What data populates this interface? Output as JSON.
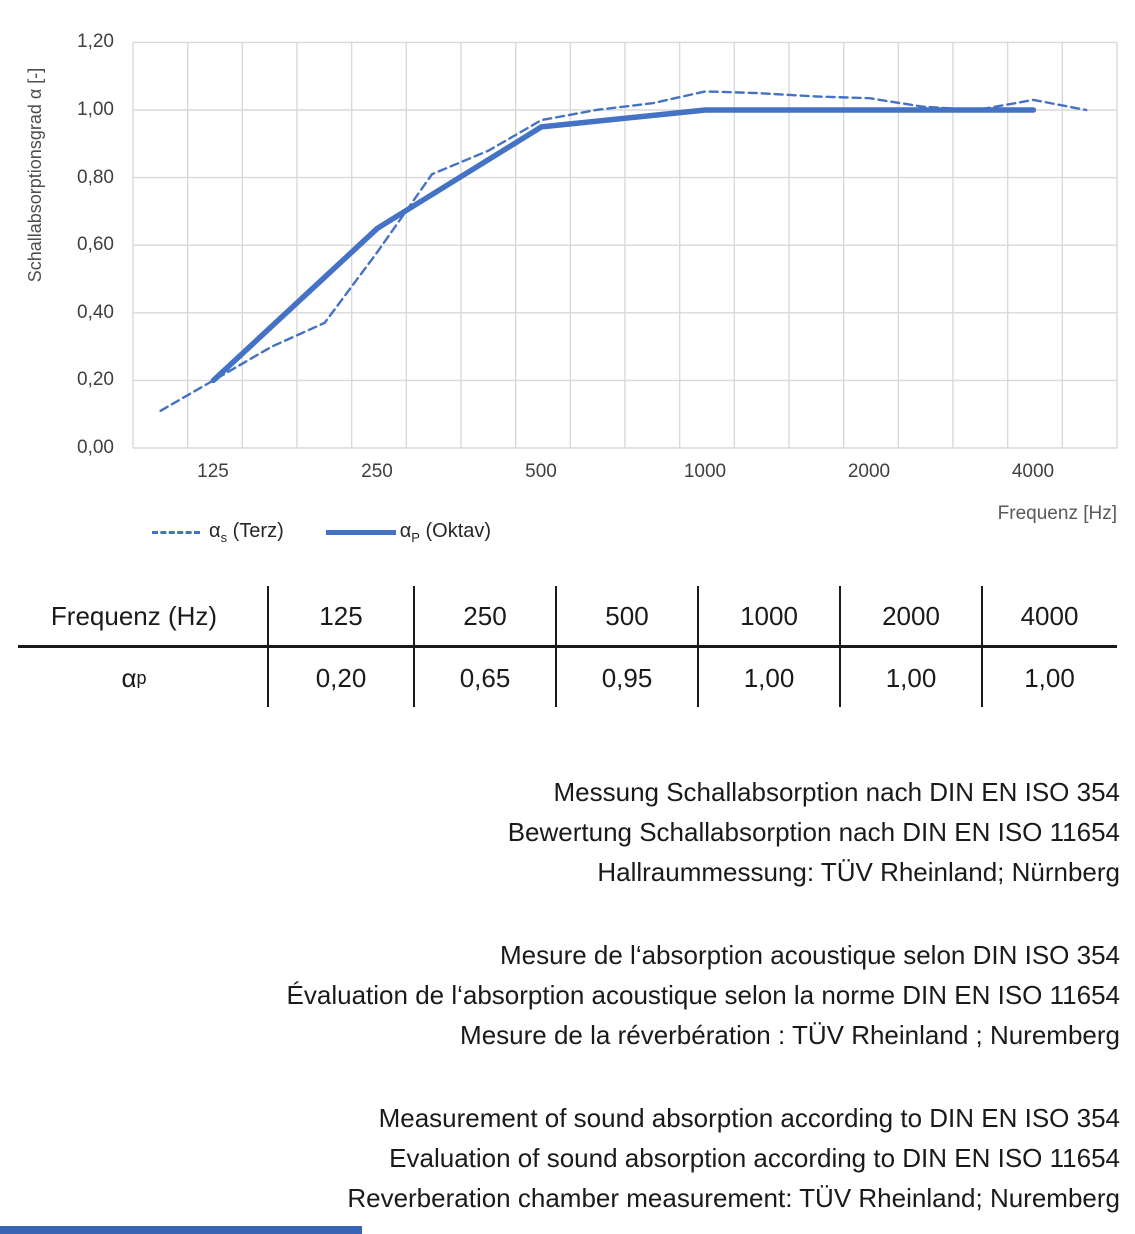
{
  "chart_data": {
    "type": "line",
    "title": "",
    "xlabel": "Frequenz [Hz]",
    "ylabel": "Schallabsorptionsgrad α [-]",
    "x_scale": "log",
    "x_tick_labels": [
      "125",
      "250",
      "500",
      "1000",
      "2000",
      "4000"
    ],
    "y_tick_labels": [
      "1,20",
      "1,00",
      "0,80",
      "0,60",
      "0,40",
      "0,20",
      "0,00"
    ],
    "ylim": [
      0.0,
      1.2
    ],
    "xlim_hz": [
      89,
      5700
    ],
    "grid": true,
    "legend_position": "bottom-left",
    "series": [
      {
        "id": "alpha-s-terz-line",
        "name": "αs (Terz)",
        "style": "dashed",
        "color": "#4472C4",
        "x": [
          100,
          125,
          160,
          200,
          250,
          315,
          400,
          500,
          630,
          800,
          1000,
          1250,
          1600,
          2000,
          2500,
          3150,
          4000,
          5000
        ],
        "values": [
          0.11,
          0.2,
          0.3,
          0.37,
          0.58,
          0.81,
          0.88,
          0.97,
          1.0,
          1.02,
          1.055,
          1.05,
          1.04,
          1.035,
          1.01,
          1.0,
          1.03,
          1.0
        ]
      },
      {
        "id": "alpha-p-oktav-line",
        "name": "αP (Oktav)",
        "style": "solid",
        "color": "#4472C4",
        "x": [
          125,
          250,
          500,
          1000,
          2000,
          4000
        ],
        "values": [
          0.2,
          0.65,
          0.95,
          1.0,
          1.0,
          1.0
        ]
      }
    ]
  },
  "legend": {
    "s1": {
      "alpha": "α",
      "sub": "s",
      "rest": " (Terz)"
    },
    "s2": {
      "alpha": "α",
      "sub": "P",
      "rest": " (Oktav)"
    }
  },
  "table": {
    "header_label": "Frequenz (Hz)",
    "row_label_alpha": "α",
    "row_label_sub": "p",
    "frequencies": [
      "125",
      "250",
      "500",
      "1000",
      "2000",
      "4000"
    ],
    "values": [
      "0,20",
      "0,65",
      "0,95",
      "1,00",
      "1,00",
      "1,00"
    ]
  },
  "notes": {
    "german": [
      "Messung Schallabsorption nach DIN EN ISO 354",
      "Bewertung Schallabsorption nach DIN EN ISO 11654",
      "Hallraummessung: TÜV Rheinland; Nürnberg"
    ],
    "french": [
      "Mesure de l‘absorption acoustique selon DIN ISO 354",
      "Évaluation de l‘absorption acoustique selon la norme DIN EN ISO 11654",
      "Mesure de la réverbération : TÜV Rheinland ; Nuremberg"
    ],
    "english": [
      "Measurement of sound absorption according to DIN EN ISO 354",
      "Evaluation of sound absorption according to DIN EN ISO 11654",
      "Reverberation chamber measurement: TÜV Rheinland; Nuremberg"
    ]
  },
  "colors": {
    "line_blue": "#4472C4",
    "grid": "#D9D9D9",
    "axis_text": "#404040",
    "footer_bar": "#3a64b4"
  }
}
